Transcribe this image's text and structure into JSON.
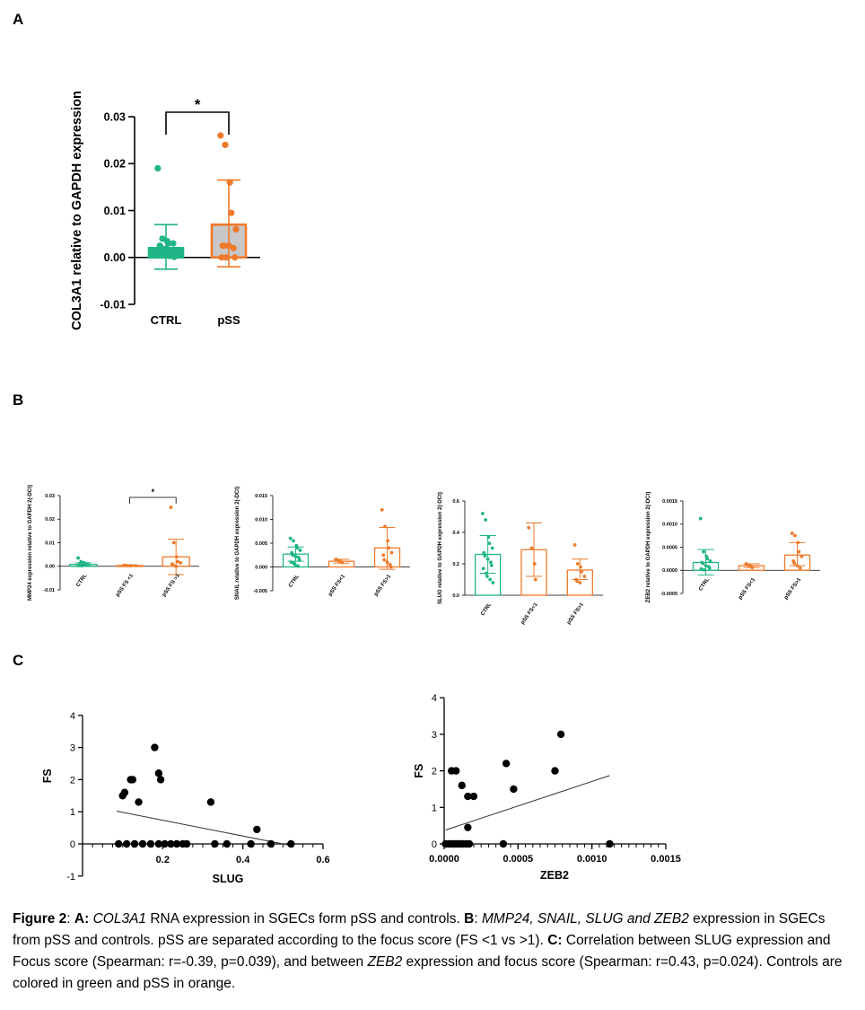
{
  "panels": {
    "A": "A",
    "B": "B",
    "C": "C"
  },
  "colors": {
    "ctrl": "#1fb586",
    "pss": "#ef7a2a",
    "bar_fill_A": "#c8c8c8",
    "black": "#000000"
  },
  "chart_data": [
    {
      "id": "A",
      "type": "bar",
      "ylabel": "COL3A1 relative to GAPDH expression",
      "categories": [
        "CTRL",
        "pSS"
      ],
      "yticks": [
        "0.03",
        "0.02",
        "0.01",
        "0.00",
        "-0.01"
      ],
      "ylim": [
        -0.01,
        0.03
      ],
      "means": [
        0.002,
        0.007
      ],
      "sd_low": [
        -0.0025,
        -0.002
      ],
      "sd_high": [
        0.007,
        0.0165
      ],
      "points": [
        [
          0.019,
          0.004,
          0.0035,
          0.003,
          0.003,
          0.0025,
          0.002,
          0.0018,
          0.0015,
          0.0012,
          0.001,
          0.0008,
          0.0005,
          0.0003,
          0.0001
        ],
        [
          0.026,
          0.024,
          0.016,
          0.0095,
          0.006,
          0.0025,
          0.0025,
          0.0025,
          0.002,
          0.0,
          0.0,
          0.0
        ]
      ],
      "significance": "*"
    },
    {
      "id": "B1",
      "type": "bar",
      "ylabel": "MMP24 expression relative to GAPDH 2(-DCt)",
      "categories": [
        "CTRL",
        "pSS FS <1",
        "pSS FS >1"
      ],
      "yticks": [
        "0.03",
        "0.02",
        "0.01",
        "0.00",
        "-0.01"
      ],
      "ylim": [
        -0.01,
        0.03
      ],
      "means": [
        0.0008,
        0.0003,
        0.004
      ],
      "sd_low": [
        0.0002,
        0.0,
        -0.0035
      ],
      "sd_high": [
        0.0015,
        0.0006,
        0.0115
      ],
      "points": [
        [
          0.0035,
          0.002,
          0.0015,
          0.0012,
          0.001,
          0.001,
          0.0008,
          0.0006,
          0.0005,
          0.0004,
          0.0003,
          0.0002
        ],
        [
          0.0004,
          0.0003,
          0.0002
        ],
        [
          0.025,
          0.01,
          0.004,
          0.002,
          0.0015,
          0.001,
          0.0005,
          0.0
        ]
      ],
      "significance": "*"
    },
    {
      "id": "B2",
      "type": "bar",
      "ylabel": "SNAIL relative to GAPDH expression 2(-DCt)",
      "categories": [
        "CTRL",
        "pSS FS<1",
        "pSS FS>1"
      ],
      "yticks": [
        "0.015",
        "0.010",
        "0.005",
        "0.000",
        "-0.005"
      ],
      "ylim": [
        -0.005,
        0.015
      ],
      "means": [
        0.0027,
        0.0012,
        0.004
      ],
      "sd_low": [
        0.0012,
        0.0008,
        -0.0005
      ],
      "sd_high": [
        0.0042,
        0.0016,
        0.0083
      ],
      "points": [
        [
          0.006,
          0.0055,
          0.0045,
          0.004,
          0.0035,
          0.003,
          0.0025,
          0.0022,
          0.002,
          0.0015,
          0.001,
          0.0008,
          0.0005,
          0.0002
        ],
        [
          0.0016,
          0.0012,
          0.0009
        ],
        [
          0.012,
          0.0085,
          0.0055,
          0.004,
          0.003,
          0.0025,
          0.0015,
          0.001,
          0.0005,
          0.0
        ]
      ]
    },
    {
      "id": "B3",
      "type": "bar",
      "ylabel": "SLUG relative to GAPDH expression 2(-DCt)",
      "categories": [
        "CTRL",
        "pSS FS<1",
        "pSS FS>1"
      ],
      "yticks": [
        "0.6",
        "0.4",
        "0.2",
        "0.0"
      ],
      "ylim": [
        0,
        0.6
      ],
      "means": [
        0.26,
        0.29,
        0.16
      ],
      "sd_low": [
        0.14,
        0.12,
        0.1
      ],
      "sd_high": [
        0.38,
        0.46,
        0.23
      ],
      "points": [
        [
          0.52,
          0.48,
          0.37,
          0.33,
          0.3,
          0.27,
          0.25,
          0.23,
          0.21,
          0.19,
          0.17,
          0.14,
          0.12,
          0.1,
          0.08
        ],
        [
          0.43,
          0.3,
          0.2,
          0.1
        ],
        [
          0.32,
          0.2,
          0.18,
          0.15,
          0.12,
          0.1,
          0.09,
          0.08
        ]
      ]
    },
    {
      "id": "B4",
      "type": "bar",
      "ylabel": "ZEB2 relative to GAPDH expression 2(-DCt)",
      "categories": [
        "CTRL",
        "pSS FS<1",
        "pSS FS>1"
      ],
      "yticks": [
        "0.0015",
        "0.0010",
        "0.0005",
        "0.0000",
        "-0.0005"
      ],
      "ylim": [
        -0.0005,
        0.0015
      ],
      "means": [
        0.00017,
        0.0001,
        0.00033
      ],
      "sd_low": [
        -0.0001,
        6e-05,
        0.0001
      ],
      "sd_high": [
        0.00045,
        0.00014,
        0.0006
      ],
      "points": [
        [
          0.00112,
          0.0004,
          0.0003,
          0.00025,
          0.0002,
          0.00017,
          0.00015,
          0.0001,
          8e-05,
          5e-05,
          3e-05,
          1e-05
        ],
        [
          0.00014,
          0.0001,
          6e-05
        ],
        [
          0.0008,
          0.00075,
          0.0006,
          0.0004,
          0.0003,
          0.0002,
          0.00015,
          0.0001,
          5e-05
        ]
      ]
    },
    {
      "id": "C1",
      "type": "scatter",
      "xlabel": "SLUG",
      "ylabel": "FS",
      "xticks": [
        "0.2",
        "0.4",
        "0.6"
      ],
      "yticks": [
        "4",
        "3",
        "2",
        "1",
        "0",
        "-1"
      ],
      "xlim": [
        0,
        0.6
      ],
      "ylim": [
        -1,
        4
      ],
      "points": [
        [
          0.1,
          1.5
        ],
        [
          0.105,
          1.6
        ],
        [
          0.12,
          2.0
        ],
        [
          0.125,
          2.0
        ],
        [
          0.14,
          1.3
        ],
        [
          0.18,
          3.0
        ],
        [
          0.19,
          2.2
        ],
        [
          0.195,
          2.0
        ],
        [
          0.32,
          1.3
        ],
        [
          0.435,
          0.45
        ],
        [
          0.09,
          0
        ],
        [
          0.11,
          0
        ],
        [
          0.13,
          0
        ],
        [
          0.15,
          0
        ],
        [
          0.17,
          0
        ],
        [
          0.19,
          0
        ],
        [
          0.205,
          0
        ],
        [
          0.22,
          0
        ],
        [
          0.235,
          0
        ],
        [
          0.25,
          0
        ],
        [
          0.26,
          0
        ],
        [
          0.33,
          0
        ],
        [
          0.36,
          0
        ],
        [
          0.42,
          0
        ],
        [
          0.47,
          0
        ],
        [
          0.52,
          0
        ]
      ],
      "fit": [
        [
          0.085,
          1.02
        ],
        [
          0.52,
          -0.05
        ]
      ]
    },
    {
      "id": "C2",
      "type": "scatter",
      "xlabel": "ZEB2",
      "ylabel": "FS",
      "xticks": [
        "0.0000",
        "0.0005",
        "0.0010",
        "0.0015"
      ],
      "yticks": [
        "4",
        "3",
        "2",
        "1",
        "0"
      ],
      "xlim": [
        0,
        0.0015
      ],
      "ylim": [
        0,
        4
      ],
      "points": [
        [
          5e-05,
          2.0
        ],
        [
          8e-05,
          2.0
        ],
        [
          0.00012,
          1.6
        ],
        [
          0.00016,
          1.3
        ],
        [
          0.0002,
          1.3
        ],
        [
          0.00016,
          0.45
        ],
        [
          0.00042,
          2.2
        ],
        [
          0.00047,
          1.5
        ],
        [
          0.00075,
          2.0
        ],
        [
          0.00079,
          3.0
        ],
        [
          1e-05,
          0
        ],
        [
          3e-05,
          0
        ],
        [
          5e-05,
          0
        ],
        [
          7e-05,
          0
        ],
        [
          9e-05,
          0
        ],
        [
          0.00011,
          0
        ],
        [
          0.00013,
          0
        ],
        [
          0.00015,
          0
        ],
        [
          0.00017,
          0
        ],
        [
          0.0004,
          0
        ],
        [
          0.00112,
          0
        ]
      ],
      "fit": [
        [
          1e-05,
          0.38
        ],
        [
          0.00112,
          1.87
        ]
      ]
    }
  ],
  "caption": {
    "fig_label": "Figure 2",
    "s1": ": ",
    "s2": "A:",
    "s3": " ",
    "s4": "COL3A1",
    "s5": " RNA expression in SGECs form pSS and controls. ",
    "s6": "B",
    "s7": ": ",
    "s8": "MMP24, SNAIL, SLUG and ZEB2",
    "s9": " expression in SGECs from pSS and controls. pSS are separated according to the focus score (FS <1 vs >1). ",
    "s10": "C:",
    "s11": " Correlation between SLUG expression and Focus score (Spearman: r=-0.39, p=0.039), and between ",
    "s12": "ZEB2",
    "s13": " expression and focus score (Spearman: r=0.43, p=0.024). Controls are colored in green and pSS in orange."
  }
}
